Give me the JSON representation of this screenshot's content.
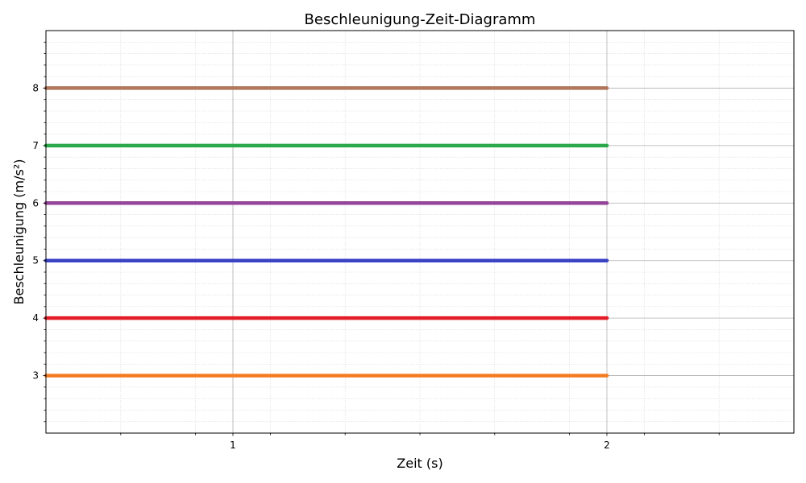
{
  "chart_data": {
    "type": "line",
    "title": "Beschleunigung-Zeit-Diagramm",
    "xlabel": "Zeit (s)",
    "ylabel": "Beschleunigung (m/s²)",
    "xlim": [
      0.5,
      2.5
    ],
    "ylim": [
      2,
      9
    ],
    "x_ticks": [
      1,
      2
    ],
    "y_ticks": [
      3,
      4,
      5,
      6,
      7,
      8
    ],
    "x_minor_step": 0.2,
    "y_minor_step": 0.2,
    "grid": true,
    "series": [
      {
        "x": [
          0.5,
          2
        ],
        "y": [
          3,
          3
        ],
        "color": "#f47b20"
      },
      {
        "x": [
          0.5,
          2
        ],
        "y": [
          4,
          4
        ],
        "color": "#e31c25"
      },
      {
        "x": [
          0.5,
          2
        ],
        "y": [
          5,
          5
        ],
        "color": "#3a43c5"
      },
      {
        "x": [
          0.5,
          2
        ],
        "y": [
          6,
          6
        ],
        "color": "#944499"
      },
      {
        "x": [
          0.5,
          2
        ],
        "y": [
          7,
          7
        ],
        "color": "#2aa84a"
      },
      {
        "x": [
          0.5,
          2
        ],
        "y": [
          8,
          8
        ],
        "color": "#b0775a"
      }
    ]
  }
}
